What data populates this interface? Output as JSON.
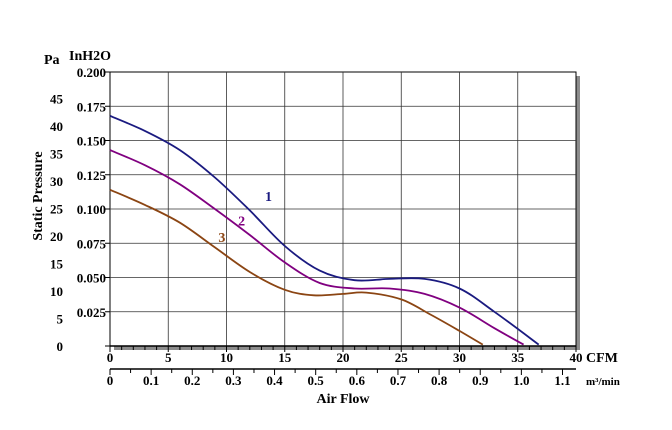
{
  "chart_data": {
    "type": "line",
    "title": "",
    "xlabel": "Air Flow",
    "ylabel": "Static Pressure",
    "x_unit_primary": "CFM",
    "x_unit_secondary": "m³/min",
    "y_unit_pa": "Pa",
    "y_unit_inh2o": "InH2O",
    "xlim": [
      0,
      40
    ],
    "ylim": [
      0,
      0.2
    ],
    "x_ticks_cfm": [
      "0",
      "5",
      "10",
      "15",
      "20",
      "25",
      "30",
      "35",
      "40"
    ],
    "x_ticks_m3min": [
      "0",
      "0.1",
      "0.2",
      "0.3",
      "0.4",
      "0.5",
      "0.6",
      "0.7",
      "0.8",
      "0.9",
      "1.0",
      "1.1"
    ],
    "y_ticks_inh2o": [
      "0.025",
      "0.050",
      "0.075",
      "0.100",
      "0.125",
      "0.150",
      "0.175",
      "0.200"
    ],
    "y_ticks_pa": [
      "0",
      "5",
      "10",
      "15",
      "20",
      "25",
      "30",
      "35",
      "40",
      "45"
    ],
    "grid": true,
    "series": [
      {
        "name": "1",
        "color": "#1a1a80",
        "label_at": [
          13.3,
          0.106
        ],
        "x": [
          0,
          3,
          6,
          9,
          12,
          15,
          18,
          21,
          24,
          27,
          30,
          33,
          36.8
        ],
        "y": [
          0.168,
          0.157,
          0.143,
          0.123,
          0.099,
          0.073,
          0.055,
          0.048,
          0.049,
          0.049,
          0.042,
          0.025,
          0.001
        ]
      },
      {
        "name": "2",
        "color": "#800080",
        "label_at": [
          11.0,
          0.088
        ],
        "x": [
          0,
          3,
          6,
          9,
          12,
          15,
          18,
          21,
          24,
          27,
          30,
          33,
          35.5
        ],
        "y": [
          0.143,
          0.132,
          0.118,
          0.1,
          0.081,
          0.061,
          0.046,
          0.042,
          0.042,
          0.038,
          0.028,
          0.013,
          0.001
        ]
      },
      {
        "name": "3",
        "color": "#8b4513",
        "label_at": [
          9.3,
          0.076
        ],
        "x": [
          0,
          3,
          6,
          9,
          12,
          15,
          17.5,
          20,
          22,
          25,
          27.5,
          30,
          32
        ],
        "y": [
          0.114,
          0.103,
          0.09,
          0.072,
          0.054,
          0.041,
          0.037,
          0.038,
          0.039,
          0.034,
          0.023,
          0.011,
          0.001
        ]
      }
    ]
  }
}
